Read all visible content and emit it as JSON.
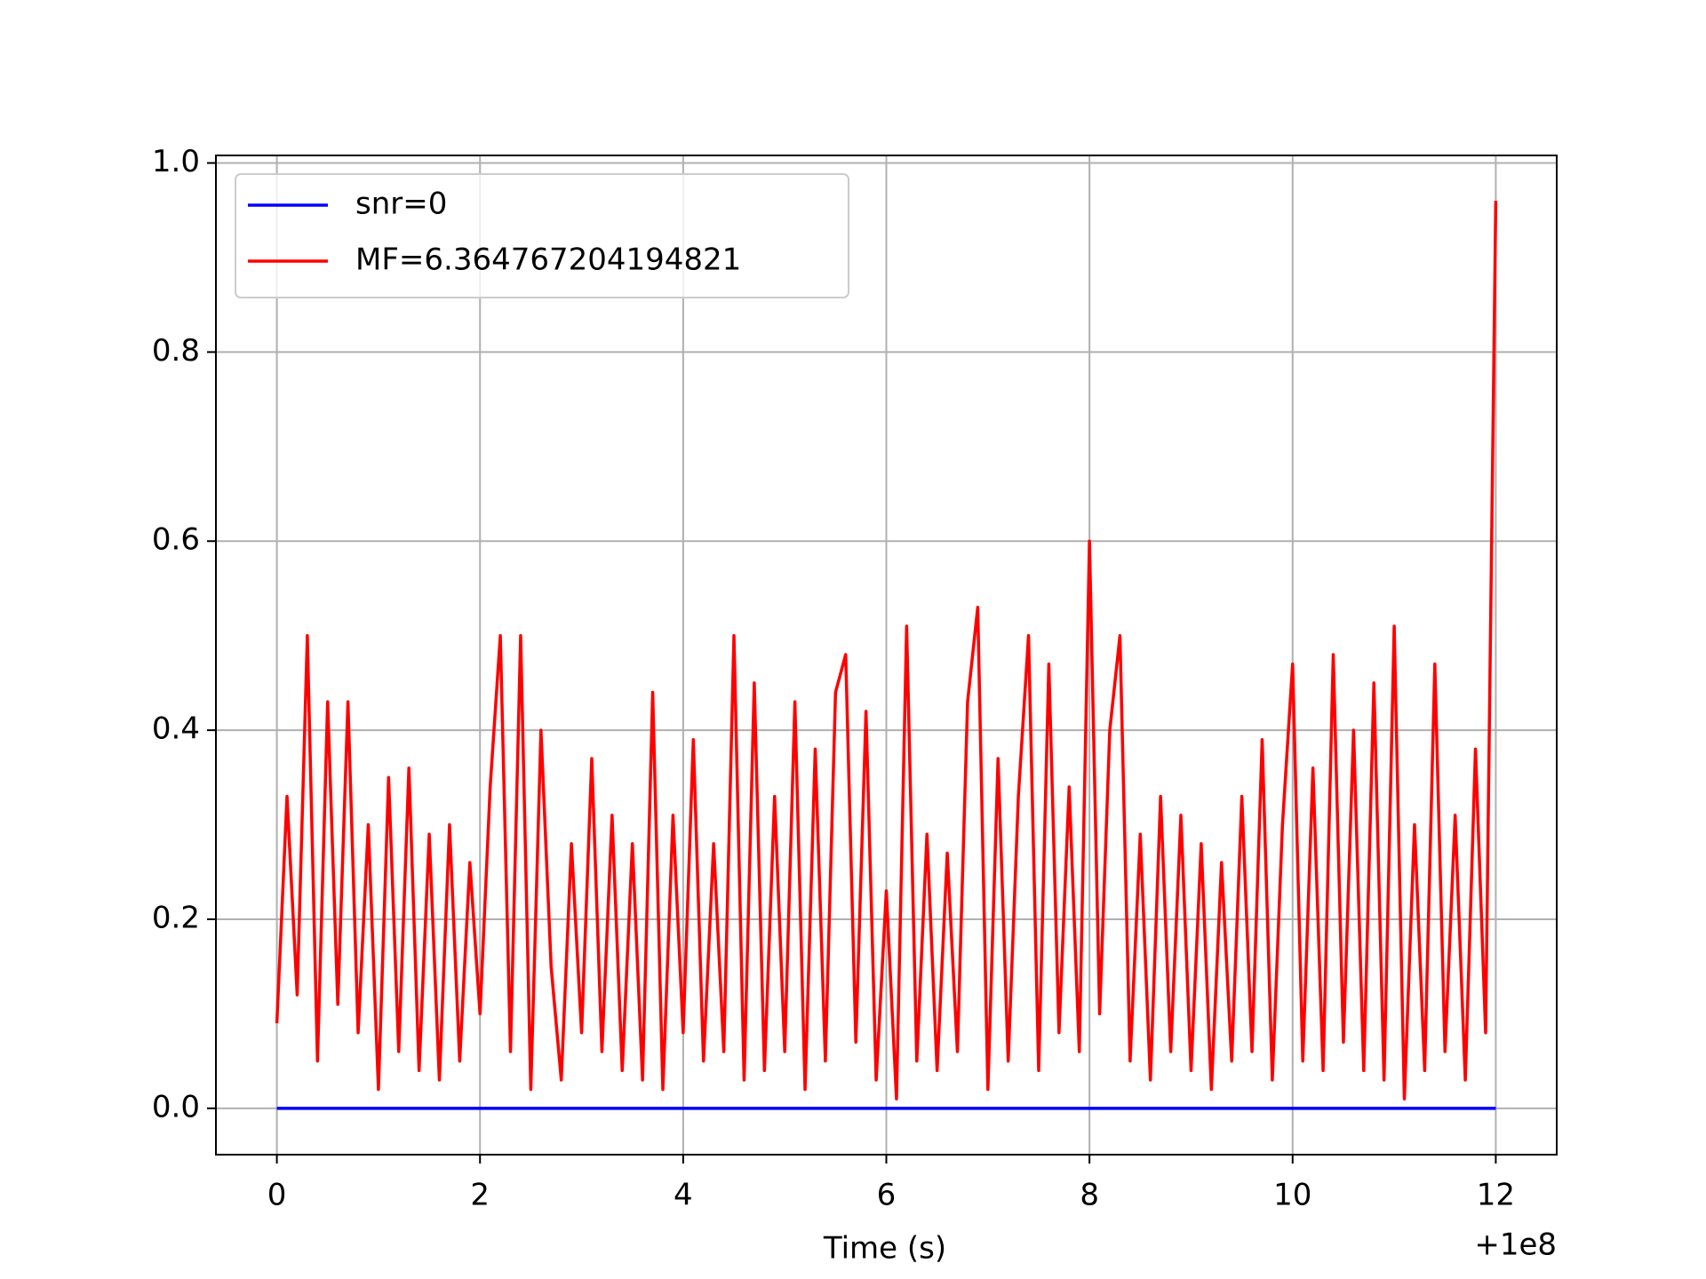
{
  "chart_data": {
    "type": "line",
    "xlabel": "Time (s)",
    "x_offset_label": "+1e8",
    "xlim": [
      -0.6,
      12.6
    ],
    "xticks": [
      0,
      2,
      4,
      6,
      8,
      10,
      12
    ],
    "ylim": [
      -0.049,
      1.008
    ],
    "yticks": [
      {
        "value": 0,
        "label": "0.0"
      },
      0.2,
      0.4,
      0.6,
      0.8,
      {
        "value": 1,
        "label": "1.0"
      }
    ],
    "grid": true,
    "legend": "upper left",
    "series": [
      {
        "name": "snr=0",
        "color": "#0000ff",
        "x": [
          0,
          12
        ],
        "values": [
          0,
          0
        ]
      },
      {
        "name": "MF=6.364767204194821",
        "color": "#ff0000",
        "x": [
          0,
          0.1,
          0.2,
          0.3,
          0.4,
          0.5,
          0.6,
          0.7,
          0.8,
          0.9,
          1,
          1.1,
          1.2,
          1.3,
          1.4,
          1.5,
          1.6,
          1.7,
          1.8,
          1.9,
          2,
          2.1,
          2.2,
          2.3,
          2.4,
          2.5,
          2.6,
          2.7,
          2.8,
          2.9,
          3,
          3.1,
          3.2,
          3.3,
          3.4,
          3.5,
          3.6,
          3.7,
          3.8,
          3.9,
          4,
          4.1,
          4.2,
          4.3,
          4.4,
          4.5,
          4.6,
          4.7,
          4.8,
          4.9,
          5,
          5.1,
          5.2,
          5.3,
          5.4,
          5.5,
          5.6,
          5.7,
          5.8,
          5.9,
          6,
          6.1,
          6.2,
          6.3,
          6.4,
          6.5,
          6.6,
          6.7,
          6.8,
          6.9,
          7,
          7.1,
          7.2,
          7.3,
          7.4,
          7.5,
          7.6,
          7.7,
          7.8,
          7.9,
          8,
          8.1,
          8.2,
          8.3,
          8.4,
          8.5,
          8.6,
          8.7,
          8.8,
          8.9,
          9,
          9.1,
          9.2,
          9.3,
          9.4,
          9.5,
          9.6,
          9.7,
          9.8,
          9.9,
          10,
          10.1,
          10.2,
          10.3,
          10.4,
          10.5,
          10.6,
          10.7,
          10.8,
          10.9,
          11,
          11.1,
          11.2,
          11.3,
          11.4,
          11.5,
          11.6,
          11.7,
          11.8,
          11.9,
          12
        ],
        "values": [
          0.09,
          0.33,
          0.12,
          0.5,
          0.05,
          0.43,
          0.11,
          0.43,
          0.08,
          0.3,
          0.02,
          0.35,
          0.06,
          0.36,
          0.04,
          0.29,
          0.03,
          0.3,
          0.05,
          0.26,
          0.1,
          0.34,
          0.5,
          0.06,
          0.5,
          0.02,
          0.4,
          0.15,
          0.03,
          0.28,
          0.08,
          0.37,
          0.06,
          0.31,
          0.04,
          0.28,
          0.03,
          0.44,
          0.02,
          0.31,
          0.08,
          0.39,
          0.05,
          0.28,
          0.06,
          0.5,
          0.03,
          0.45,
          0.04,
          0.33,
          0.06,
          0.43,
          0.02,
          0.38,
          0.05,
          0.44,
          0.48,
          0.07,
          0.42,
          0.03,
          0.23,
          0.01,
          0.51,
          0.05,
          0.29,
          0.04,
          0.27,
          0.06,
          0.43,
          0.53,
          0.02,
          0.37,
          0.05,
          0.33,
          0.5,
          0.04,
          0.47,
          0.08,
          0.34,
          0.06,
          0.6,
          0.1,
          0.4,
          0.5,
          0.05,
          0.29,
          0.03,
          0.33,
          0.06,
          0.31,
          0.04,
          0.28,
          0.02,
          0.26,
          0.05,
          0.33,
          0.06,
          0.39,
          0.03,
          0.3,
          0.47,
          0.05,
          0.36,
          0.04,
          0.48,
          0.07,
          0.4,
          0.04,
          0.45,
          0.03,
          0.51,
          0.01,
          0.3,
          0.04,
          0.47,
          0.06,
          0.31,
          0.03,
          0.38,
          0.08,
          0.96
        ]
      }
    ]
  }
}
